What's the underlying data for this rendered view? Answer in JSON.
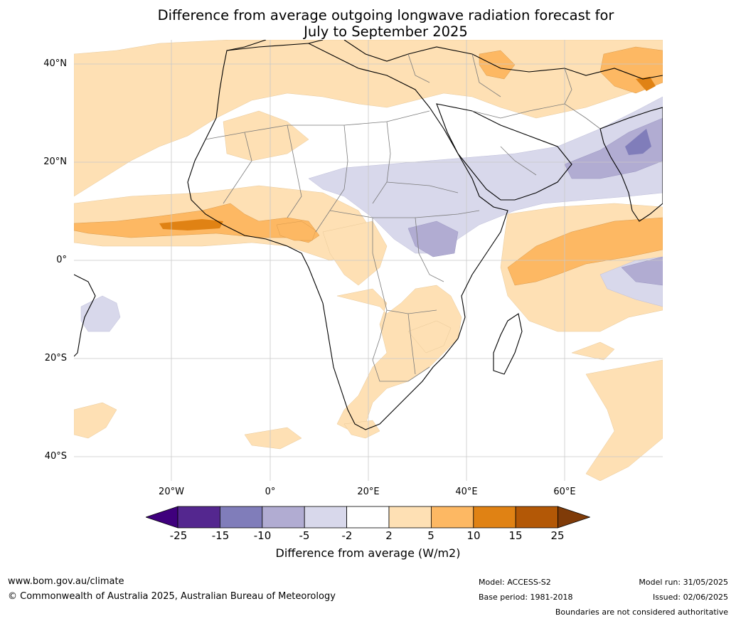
{
  "title_line1": "Difference from average outgoing longwave radiation forecast for",
  "title_line2": "July to September 2025",
  "lat_labels": [
    "40°N",
    "20°N",
    "0°",
    "20°S",
    "40°S"
  ],
  "lon_labels": [
    "20°W",
    "0°",
    "20°E",
    "40°E",
    "60°E"
  ],
  "colorbar": {
    "title": "Difference from average (W/m2)",
    "ticks": [
      "-25",
      "-15",
      "-10",
      "-5",
      "-2",
      "2",
      "5",
      "10",
      "15",
      "25"
    ],
    "colors": [
      "#3f007d",
      "#54278f",
      "#807dba",
      "#b1acd2",
      "#d8d8eb",
      "#ffffff",
      "#fee0b4",
      "#fdb863",
      "#e08214",
      "#b35806",
      "#7f3b08"
    ]
  },
  "footer": {
    "website": "www.bom.gov.au/climate",
    "copyright": "© Commonwealth of Australia 2025, Australian Bureau of Meteorology",
    "model": "Model: ACCESS-S2",
    "base_period": "Base period: 1981-2018",
    "model_run": "Model run: 31/05/2025",
    "issued": "Issued: 02/06/2025",
    "disclaimer": "Boundaries are not considered authoritative"
  }
}
